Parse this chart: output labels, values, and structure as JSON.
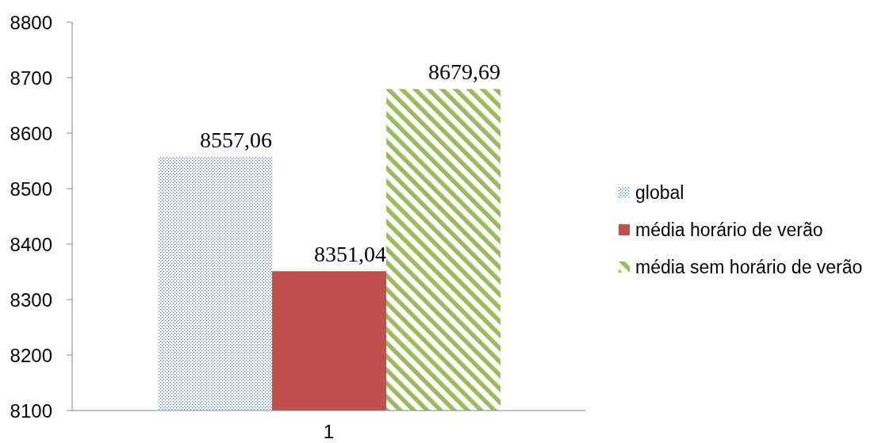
{
  "chart_data": {
    "type": "bar",
    "categories": [
      "1"
    ],
    "series": [
      {
        "name": "global",
        "color": "#4f81bd",
        "values": [
          8557.06
        ],
        "value_labels": [
          "8557,06"
        ]
      },
      {
        "name": "média horário de verão",
        "color": "#c0504d",
        "values": [
          8351.04
        ],
        "value_labels": [
          "8351,04"
        ]
      },
      {
        "name": "média sem horário de verão",
        "color": "#9bbb59",
        "values": [
          8679.69
        ],
        "value_labels": [
          "8679,69"
        ]
      }
    ],
    "ylim": [
      8100,
      8800
    ],
    "yticks": [
      8100,
      8200,
      8300,
      8400,
      8500,
      8600,
      8700,
      8800
    ],
    "legend": "right"
  }
}
